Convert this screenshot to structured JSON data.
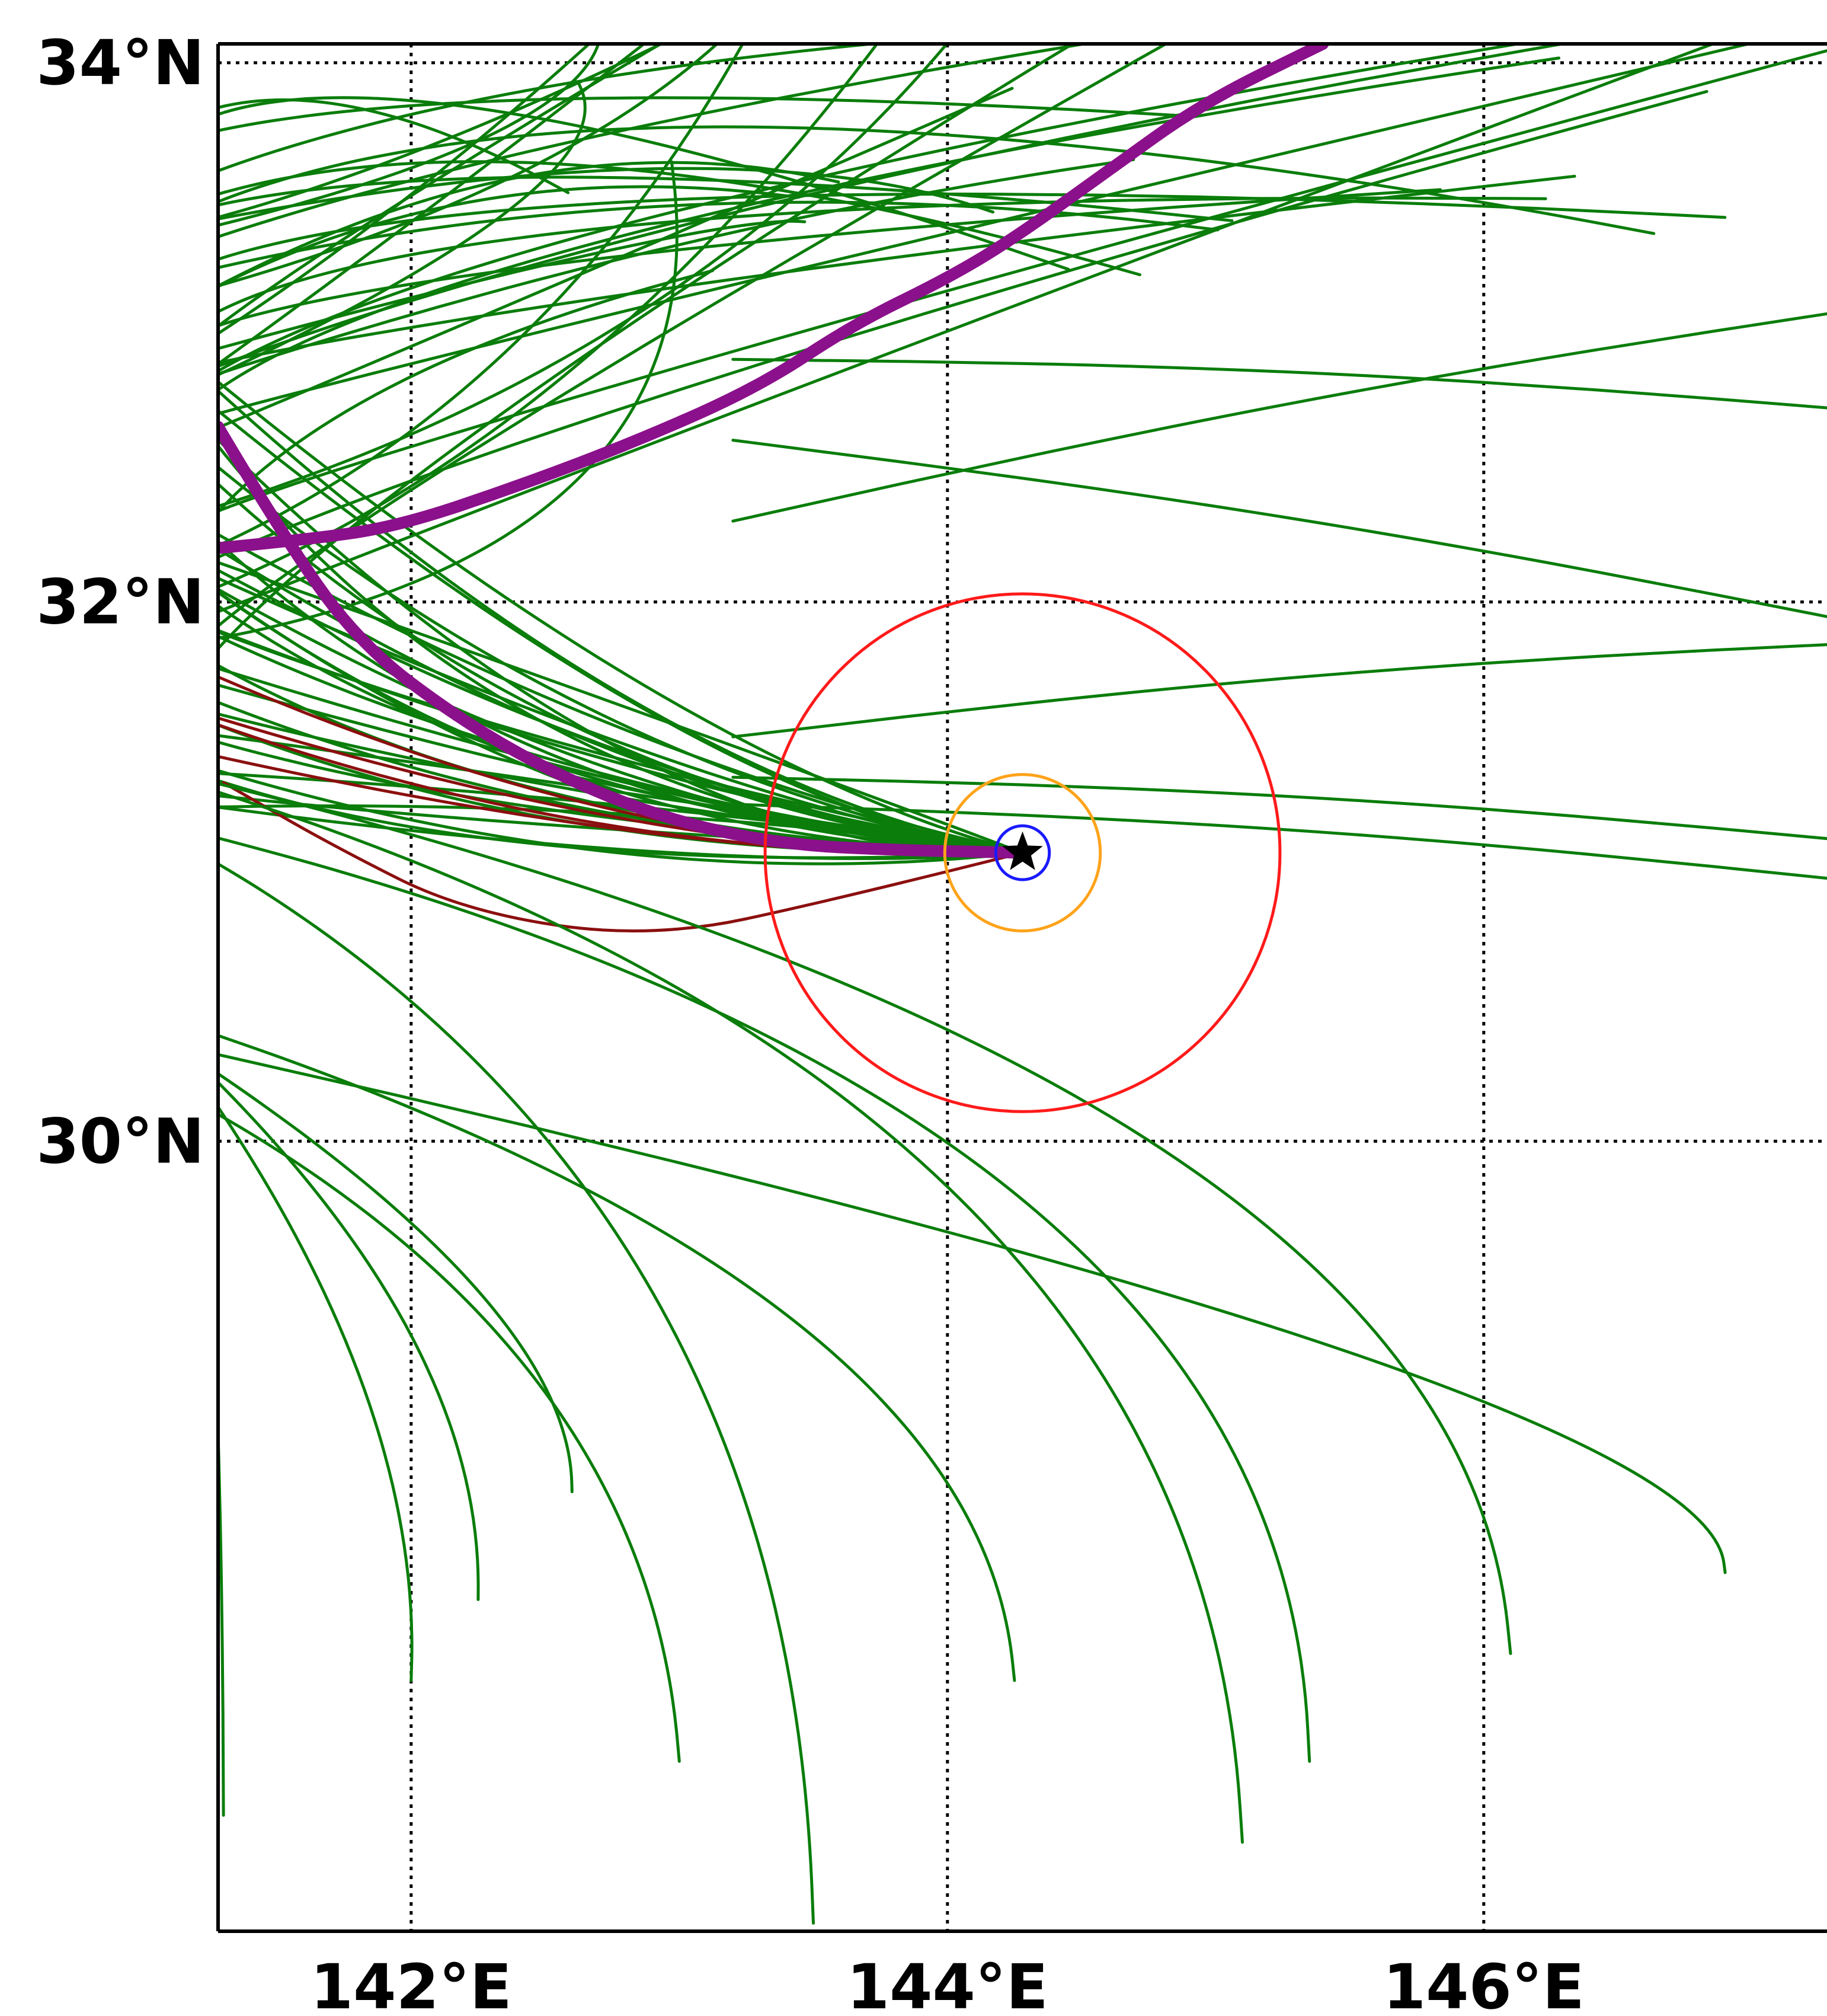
{
  "map": {
    "lon_range": [
      141.28,
      147.28
    ],
    "lat_range": [
      27.07,
      34.07
    ],
    "grid_lons": [
      142,
      144,
      146
    ],
    "grid_lats": [
      30,
      32,
      34
    ],
    "lon_labels": [
      "142°E",
      "144°E",
      "146°E"
    ],
    "lat_labels": [
      "30°N",
      "32°N",
      "34°N"
    ],
    "grid_style": "dotted",
    "colors": {
      "ensemble_track": "#0a7d0a",
      "ensemble_track_alt": "#8b0f0f",
      "best_track": "#8b108b",
      "outer_ring": "#ff1a1a",
      "middle_ring": "#ffa31a",
      "inner_ring": "#1a1aff",
      "center_marker": "#000000"
    },
    "center": {
      "lon": 144.28,
      "lat": 31.07,
      "marker": "star-icon"
    },
    "rings_deg_radius": {
      "outer": 0.96,
      "middle": 0.29,
      "inner": 0.1
    },
    "best_track": [
      [
        141.28,
        32.2
      ],
      [
        141.6,
        32.23
      ],
      [
        141.95,
        32.28
      ],
      [
        142.4,
        32.43
      ],
      [
        142.85,
        32.6
      ],
      [
        143.3,
        32.8
      ],
      [
        143.65,
        33.03
      ],
      [
        144.0,
        33.2
      ],
      [
        144.25,
        33.35
      ],
      [
        144.6,
        33.6
      ],
      [
        144.95,
        33.85
      ],
      [
        145.4,
        34.07
      ]
    ],
    "best_track_southern": [
      [
        141.28,
        32.65
      ],
      [
        141.5,
        32.28
      ],
      [
        141.8,
        31.85
      ],
      [
        142.2,
        31.55
      ],
      [
        142.6,
        31.33
      ],
      [
        143.0,
        31.18
      ],
      [
        143.4,
        31.1
      ],
      [
        143.8,
        31.08
      ],
      [
        144.28,
        31.07
      ]
    ]
  }
}
